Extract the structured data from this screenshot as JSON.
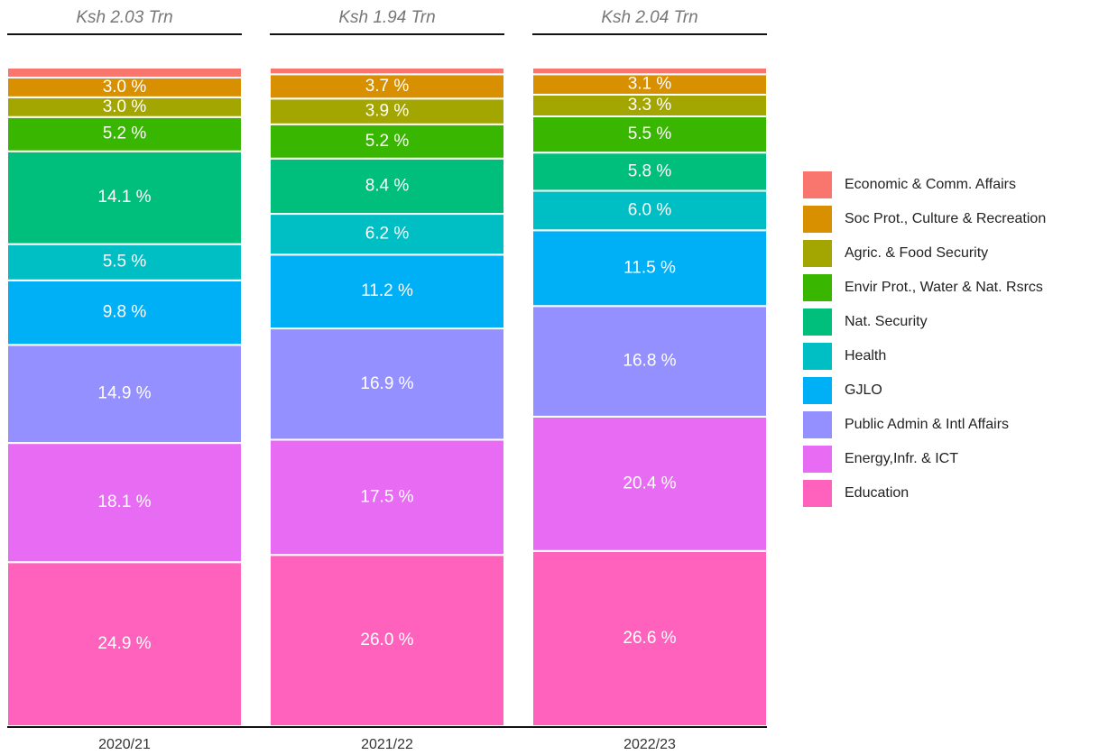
{
  "chart_data": {
    "type": "stacked_bar",
    "categories": [
      "2020/21",
      "2021/22",
      "2022/23"
    ],
    "column_titles": [
      "Ksh 2.03 Trn",
      "Ksh 1.94 Trn",
      "Ksh 2.04 Trn"
    ],
    "ylim": [
      0,
      100
    ],
    "series": [
      {
        "name": "Economic & Comm. Affairs",
        "color": "#f8766d",
        "values": [
          1.5,
          1.0,
          1.0
        ],
        "value_labels": [
          null,
          null,
          null
        ]
      },
      {
        "name": "Soc Prot., Culture & Recreation",
        "color": "#d89000",
        "values": [
          3.0,
          3.7,
          3.1
        ],
        "value_labels": [
          "3.0 %",
          "3.7 %",
          "3.1 %"
        ]
      },
      {
        "name": "Agric. & Food Security",
        "color": "#a3a500",
        "values": [
          3.0,
          3.9,
          3.3
        ],
        "value_labels": [
          "3.0 %",
          "3.9 %",
          "3.3 %"
        ]
      },
      {
        "name": "Envir Prot., Water & Nat. Rsrcs",
        "color": "#39b600",
        "values": [
          5.2,
          5.2,
          5.5
        ],
        "value_labels": [
          "5.2 %",
          "5.2 %",
          "5.5 %"
        ]
      },
      {
        "name": "Nat. Security",
        "color": "#00bf7d",
        "values": [
          14.1,
          8.4,
          5.8
        ],
        "value_labels": [
          "14.1 %",
          "8.4 %",
          "5.8 %"
        ]
      },
      {
        "name": "Health",
        "color": "#00bfc4",
        "values": [
          5.5,
          6.2,
          6.0
        ],
        "value_labels": [
          "5.5 %",
          "6.2 %",
          "6.0 %"
        ]
      },
      {
        "name": "GJLO",
        "color": "#00b0f6",
        "values": [
          9.8,
          11.2,
          11.5
        ],
        "value_labels": [
          "9.8 %",
          "11.2 %",
          "11.5 %"
        ]
      },
      {
        "name": "Public Admin & Intl Affairs",
        "color": "#9590ff",
        "values": [
          14.9,
          16.9,
          16.8
        ],
        "value_labels": [
          "14.9 %",
          "16.9 %",
          "16.8 %"
        ]
      },
      {
        "name": "Energy,Infr. & ICT",
        "color": "#e76bf3",
        "values": [
          18.1,
          17.5,
          20.4
        ],
        "value_labels": [
          "18.1 %",
          "17.5 %",
          "20.4 %"
        ]
      },
      {
        "name": "Education",
        "color": "#ff62bc",
        "values": [
          24.9,
          26.0,
          26.6
        ],
        "value_labels": [
          "24.9 %",
          "26.0 %",
          "26.6 %"
        ]
      }
    ]
  }
}
